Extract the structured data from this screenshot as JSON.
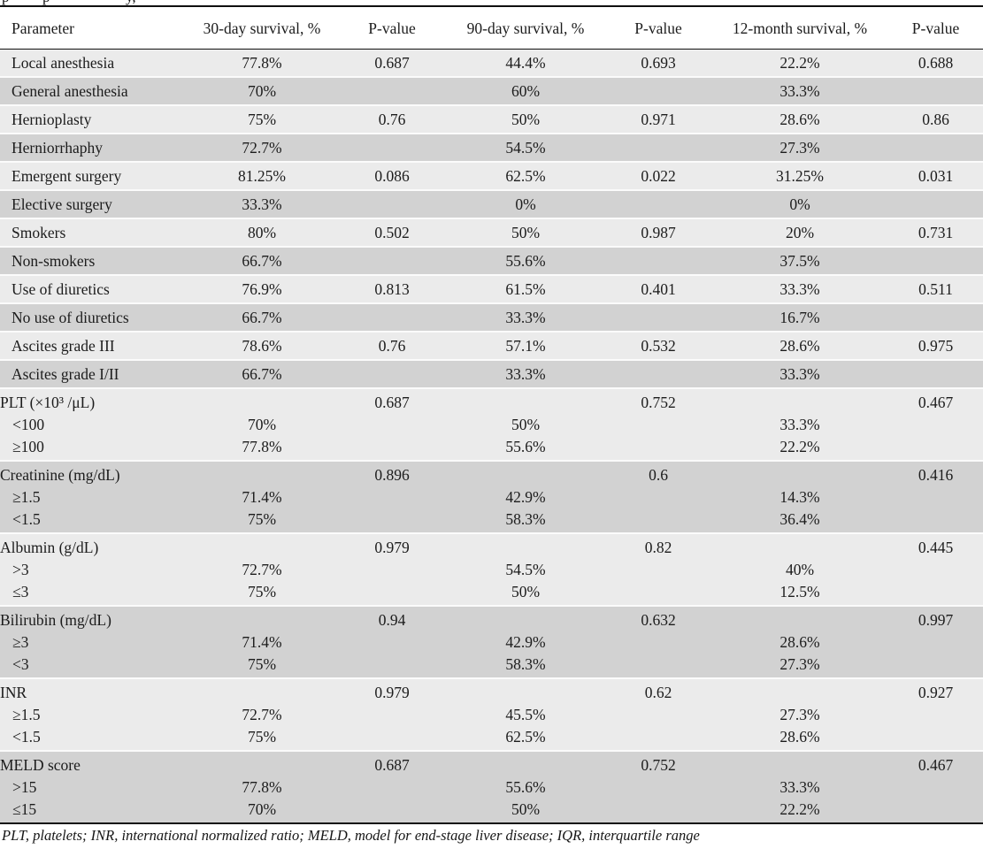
{
  "caption": {
    "fragments": [
      "p",
      "p",
      "y,"
    ]
  },
  "table": {
    "columns": [
      "Parameter",
      "30-day survival, %",
      "P-value",
      "90-day survival, %",
      "P-value",
      "12-month survival, %",
      "P-value"
    ],
    "rows": [
      {
        "type": "single",
        "shade": "light",
        "cells": [
          "Local anesthesia",
          "77.8%",
          "0.687",
          "44.4%",
          "0.693",
          "22.2%",
          "0.688"
        ]
      },
      {
        "type": "single",
        "shade": "dark",
        "cells": [
          "General anesthesia",
          "70%",
          "",
          "60%",
          "",
          "33.3%",
          ""
        ]
      },
      {
        "type": "single",
        "shade": "light",
        "cells": [
          "Hernioplasty",
          "75%",
          "0.76",
          "50%",
          "0.971",
          "28.6%",
          "0.86"
        ]
      },
      {
        "type": "single",
        "shade": "dark",
        "cells": [
          "Herniorrhaphy",
          "72.7%",
          "",
          "54.5%",
          "",
          "27.3%",
          ""
        ]
      },
      {
        "type": "single",
        "shade": "light",
        "cells": [
          "Emergent surgery",
          "81.25%",
          "0.086",
          "62.5%",
          "0.022",
          "31.25%",
          "0.031"
        ]
      },
      {
        "type": "single",
        "shade": "dark",
        "cells": [
          "Elective surgery",
          "33.3%",
          "",
          "0%",
          "",
          "0%",
          ""
        ]
      },
      {
        "type": "single",
        "shade": "light",
        "cells": [
          "Smokers",
          "80%",
          "0.502",
          "50%",
          "0.987",
          "20%",
          "0.731"
        ]
      },
      {
        "type": "single",
        "shade": "dark",
        "cells": [
          "Non-smokers",
          "66.7%",
          "",
          "55.6%",
          "",
          "37.5%",
          ""
        ]
      },
      {
        "type": "single",
        "shade": "light",
        "cells": [
          "Use of diuretics",
          "76.9%",
          "0.813",
          "61.5%",
          "0.401",
          "33.3%",
          "0.511"
        ]
      },
      {
        "type": "single",
        "shade": "dark",
        "cells": [
          "No use of diuretics",
          "66.7%",
          "",
          "33.3%",
          "",
          "16.7%",
          ""
        ]
      },
      {
        "type": "single",
        "shade": "light",
        "cells": [
          "Ascites grade III",
          "78.6%",
          "0.76",
          "57.1%",
          "0.532",
          "28.6%",
          "0.975"
        ]
      },
      {
        "type": "single",
        "shade": "dark",
        "cells": [
          "Ascites grade I/II",
          "66.7%",
          "",
          "33.3%",
          "",
          "33.3%",
          ""
        ]
      },
      {
        "type": "group",
        "shade": "light",
        "label": "PLT (×10³ /μL)",
        "pvalues": [
          "0.687",
          "0.752",
          "0.467"
        ],
        "sub": [
          {
            "label": "<100",
            "values": [
              "70%",
              "50%",
              "33.3%"
            ]
          },
          {
            "label": "≥100",
            "values": [
              "77.8%",
              "55.6%",
              "22.2%"
            ]
          }
        ]
      },
      {
        "type": "group",
        "shade": "dark",
        "label": "Creatinine (mg/dL)",
        "pvalues": [
          "0.896",
          "0.6",
          "0.416"
        ],
        "sub": [
          {
            "label": "≥1.5",
            "values": [
              "71.4%",
              "42.9%",
              "14.3%"
            ]
          },
          {
            "label": "<1.5",
            "values": [
              "75%",
              "58.3%",
              "36.4%"
            ]
          }
        ]
      },
      {
        "type": "group",
        "shade": "light",
        "label": "Albumin (g/dL)",
        "pvalues": [
          "0.979",
          "0.82",
          "0.445"
        ],
        "sub": [
          {
            "label": ">3",
            "values": [
              "72.7%",
              "54.5%",
              "40%"
            ]
          },
          {
            "label": "≤3",
            "values": [
              "75%",
              "50%",
              "12.5%"
            ]
          }
        ]
      },
      {
        "type": "group",
        "shade": "dark",
        "label": "Bilirubin (mg/dL)",
        "pvalues": [
          "0.94",
          "0.632",
          "0.997"
        ],
        "sub": [
          {
            "label": "≥3",
            "values": [
              "71.4%",
              "42.9%",
              "28.6%"
            ]
          },
          {
            "label": "<3",
            "values": [
              "75%",
              "58.3%",
              "27.3%"
            ]
          }
        ]
      },
      {
        "type": "group",
        "shade": "light",
        "label": "INR",
        "pvalues": [
          "0.979",
          "0.62",
          "0.927"
        ],
        "sub": [
          {
            "label": "≥1.5",
            "values": [
              "72.7%",
              "45.5%",
              "27.3%"
            ]
          },
          {
            "label": "<1.5",
            "values": [
              "75%",
              "62.5%",
              "28.6%"
            ]
          }
        ]
      },
      {
        "type": "group",
        "shade": "dark",
        "label": "MELD score",
        "pvalues": [
          "0.687",
          "0.752",
          "0.467"
        ],
        "sub": [
          {
            "label": ">15",
            "values": [
              "77.8%",
              "55.6%",
              "33.3%"
            ]
          },
          {
            "label": "≤15",
            "values": [
              "70%",
              "50%",
              "22.2%"
            ]
          }
        ]
      }
    ],
    "footnote": "PLT, platelets; INR, international normalized ratio; MELD, model for end-stage liver disease; IQR, interquartile range"
  },
  "colors": {
    "row_light": "#ebebeb",
    "row_dark": "#d2d2d2",
    "border": "#101010",
    "text": "#1c1c1c"
  }
}
